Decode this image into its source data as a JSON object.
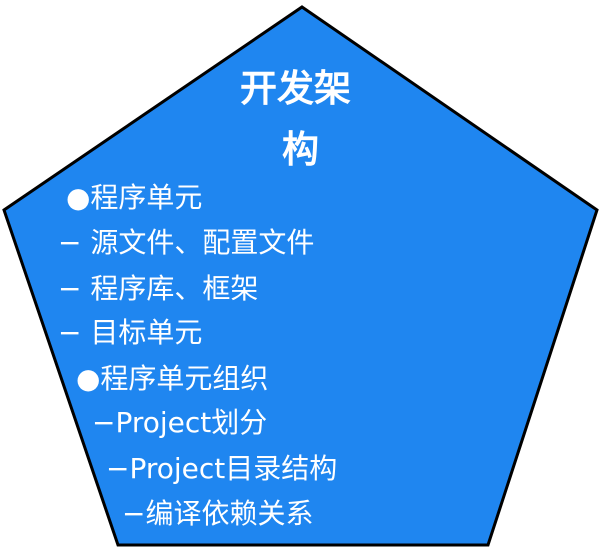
{
  "diagram": {
    "shape": "pentagon",
    "fill_color": "#1F86F0",
    "stroke_color": "#000000",
    "text_color": "#ffffff",
    "title": {
      "line1": "开发架",
      "line2": "构"
    },
    "items": [
      {
        "text": "●程序单元"
      },
      {
        "text": "−  源文件、配置文件"
      },
      {
        "text": "−  程序库、框架"
      },
      {
        "text": "−  目标单元"
      },
      {
        "text": "●程序单元组织"
      },
      {
        "text": "−Project划分"
      },
      {
        "text": "−Project目录结构"
      },
      {
        "text": "−编译依赖关系"
      }
    ]
  }
}
